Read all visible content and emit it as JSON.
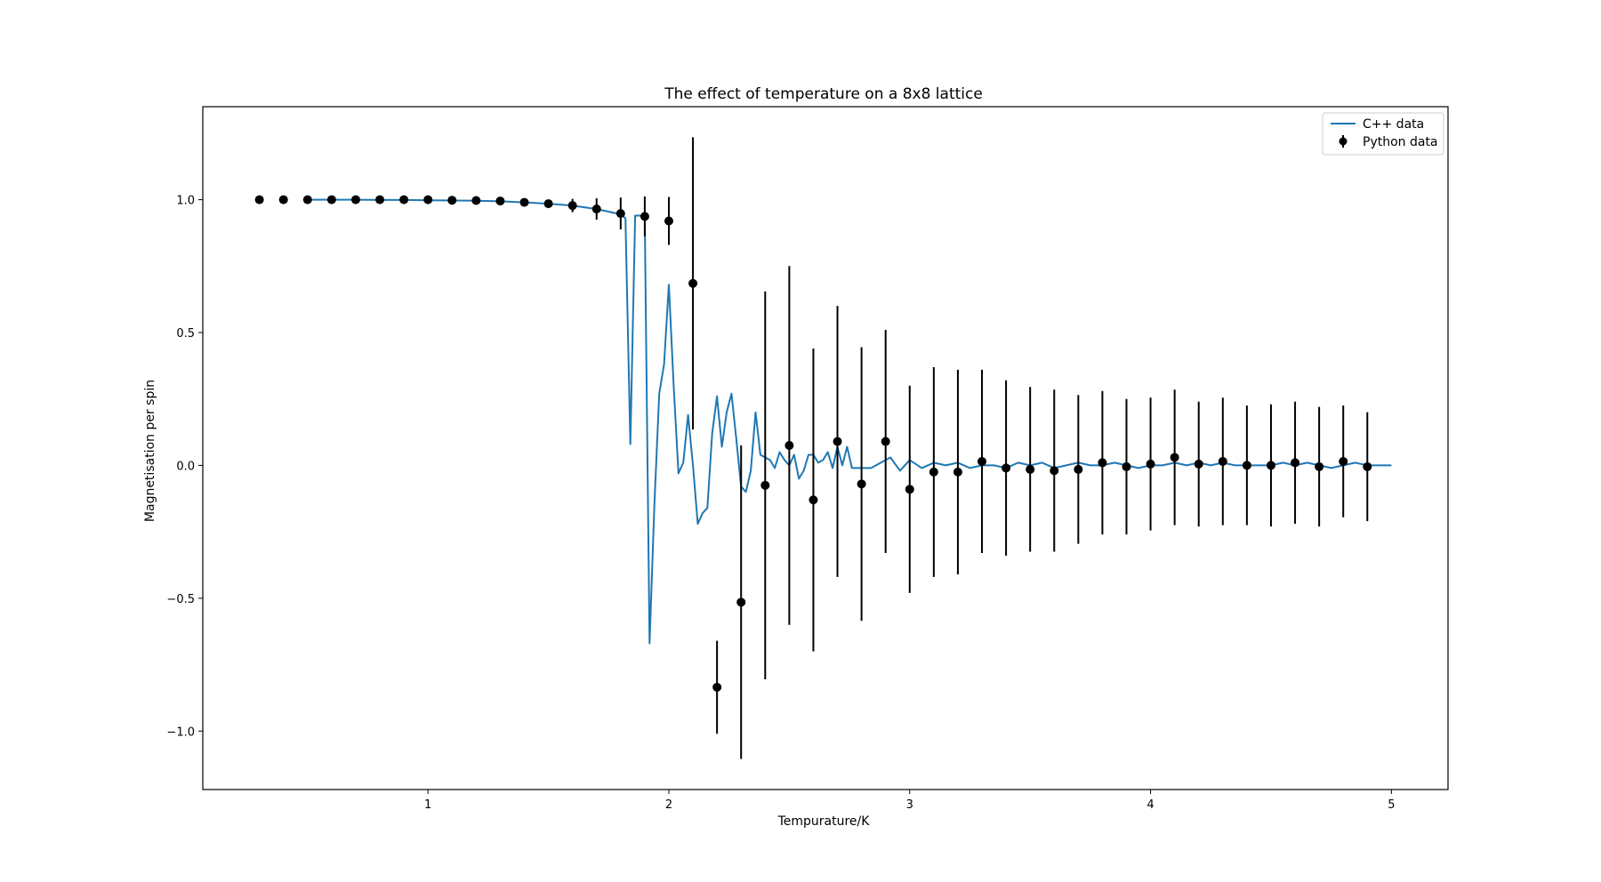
{
  "chart_data": {
    "type": "line",
    "title": "The effect of temperature on a 8x8 lattice",
    "xlabel": "Tempurature/K",
    "ylabel": "Magnetisation per spin",
    "xlim": [
      0.065,
      5.235
    ],
    "ylim": [
      -1.22,
      1.35
    ],
    "xticks": [
      1,
      2,
      3,
      4,
      5
    ],
    "xtick_labels": [
      "1",
      "2",
      "3",
      "4",
      "5"
    ],
    "yticks": [
      -1.0,
      -0.5,
      0.0,
      0.5,
      1.0
    ],
    "ytick_labels": [
      "−1.0",
      "−0.5",
      "0.0",
      "0.5",
      "1.0"
    ],
    "grid": false,
    "legend_position": "top-right",
    "colors": {
      "line": "#1f77b4",
      "points": "#000000"
    },
    "series": [
      {
        "name": "C++ data",
        "kind": "line",
        "x": [
          0.5,
          0.6,
          0.7,
          0.8,
          0.9,
          1.0,
          1.1,
          1.2,
          1.3,
          1.4,
          1.5,
          1.6,
          1.7,
          1.8,
          1.82,
          1.84,
          1.86,
          1.88,
          1.9,
          1.92,
          1.94,
          1.96,
          1.98,
          2.0,
          2.02,
          2.04,
          2.06,
          2.08,
          2.1,
          2.12,
          2.14,
          2.16,
          2.18,
          2.2,
          2.22,
          2.24,
          2.26,
          2.28,
          2.3,
          2.32,
          2.34,
          2.36,
          2.38,
          2.4,
          2.42,
          2.44,
          2.46,
          2.48,
          2.5,
          2.52,
          2.54,
          2.56,
          2.58,
          2.6,
          2.62,
          2.64,
          2.66,
          2.68,
          2.7,
          2.72,
          2.74,
          2.76,
          2.78,
          2.8,
          2.84,
          2.88,
          2.92,
          2.96,
          3.0,
          3.05,
          3.1,
          3.15,
          3.2,
          3.25,
          3.3,
          3.35,
          3.4,
          3.45,
          3.5,
          3.55,
          3.6,
          3.65,
          3.7,
          3.75,
          3.8,
          3.85,
          3.9,
          3.95,
          4.0,
          4.05,
          4.1,
          4.15,
          4.2,
          4.25,
          4.3,
          4.35,
          4.4,
          4.45,
          4.5,
          4.55,
          4.6,
          4.65,
          4.7,
          4.75,
          4.8,
          4.85,
          4.9,
          4.95,
          5.0
        ],
        "y": [
          1.0,
          1.0,
          1.0,
          0.999,
          0.999,
          0.998,
          0.997,
          0.996,
          0.994,
          0.99,
          0.985,
          0.978,
          0.965,
          0.945,
          0.93,
          0.08,
          0.94,
          0.94,
          0.93,
          -0.67,
          -0.15,
          0.27,
          0.38,
          0.68,
          0.3,
          -0.03,
          0.01,
          0.19,
          0.0,
          -0.22,
          -0.18,
          -0.16,
          0.12,
          0.26,
          0.07,
          0.2,
          0.27,
          0.1,
          -0.08,
          -0.1,
          -0.02,
          0.2,
          0.04,
          0.03,
          0.02,
          -0.01,
          0.05,
          0.02,
          0.0,
          0.04,
          -0.05,
          -0.02,
          0.04,
          0.04,
          0.01,
          0.02,
          0.05,
          -0.01,
          0.07,
          0.0,
          0.07,
          -0.01,
          -0.01,
          -0.01,
          -0.01,
          0.01,
          0.03,
          -0.02,
          0.02,
          -0.01,
          0.01,
          0.0,
          0.01,
          -0.01,
          0.0,
          0.0,
          -0.01,
          0.01,
          0.0,
          0.01,
          -0.01,
          0.0,
          0.01,
          0.0,
          0.0,
          0.01,
          0.0,
          -0.01,
          0.0,
          0.0,
          0.01,
          0.0,
          0.01,
          0.0,
          0.01,
          0.0,
          0.0,
          0.0,
          0.0,
          0.01,
          0.0,
          0.01,
          0.0,
          -0.01,
          0.0,
          0.01,
          0.0,
          0.0,
          0.0
        ]
      },
      {
        "name": "Python data",
        "kind": "errorbar",
        "x": [
          0.3,
          0.4,
          0.5,
          0.6,
          0.7,
          0.8,
          0.9,
          1.0,
          1.1,
          1.2,
          1.3,
          1.4,
          1.5,
          1.6,
          1.7,
          1.8,
          1.9,
          2.0,
          2.1,
          2.2,
          2.3,
          2.4,
          2.5,
          2.6,
          2.7,
          2.8,
          2.9,
          3.0,
          3.1,
          3.2,
          3.3,
          3.4,
          3.5,
          3.6,
          3.7,
          3.8,
          3.9,
          4.0,
          4.1,
          4.2,
          4.3,
          4.4,
          4.5,
          4.6,
          4.7,
          4.8,
          4.9
        ],
        "y": [
          1.0,
          1.0,
          1.0,
          1.0,
          1.0,
          1.0,
          1.0,
          1.0,
          0.998,
          0.997,
          0.995,
          0.99,
          0.985,
          0.978,
          0.965,
          0.948,
          0.937,
          0.92,
          0.685,
          -0.835,
          -0.515,
          -0.075,
          0.075,
          -0.13,
          0.09,
          -0.07,
          0.09,
          -0.09,
          -0.025,
          -0.025,
          0.015,
          -0.01,
          -0.015,
          -0.02,
          -0.015,
          0.01,
          -0.005,
          0.005,
          0.03,
          0.005,
          0.015,
          0.0,
          0.0,
          0.01,
          -0.005,
          0.015,
          -0.005
        ],
        "yerr": [
          0,
          0,
          0,
          0,
          0,
          0,
          0,
          0,
          0,
          0,
          0.005,
          0.01,
          0.015,
          0.025,
          0.04,
          0.06,
          0.075,
          0.09,
          0.55,
          0.175,
          0.59,
          0.73,
          0.675,
          0.57,
          0.51,
          0.515,
          0.42,
          0.39,
          0.395,
          0.385,
          0.345,
          0.33,
          0.31,
          0.305,
          0.28,
          0.27,
          0.255,
          0.25,
          0.255,
          0.235,
          0.24,
          0.225,
          0.23,
          0.23,
          0.225,
          0.21,
          0.205
        ]
      }
    ]
  }
}
